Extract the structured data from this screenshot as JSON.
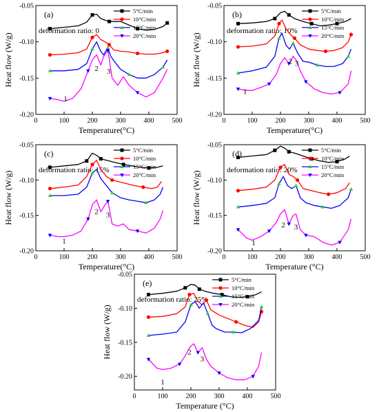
{
  "figure": {
    "series_names": [
      "5°C/min",
      "10°C/min",
      "15°C/min",
      "20°C/min"
    ],
    "series_colors": [
      "#000000",
      "#ff0000",
      "#0000ff",
      "#ff00ff"
    ],
    "marker_colors": [
      "#000000",
      "#ff0000",
      "#33cc33",
      "#0000ff"
    ],
    "marker_shapes": [
      "square",
      "circle",
      "triangle-up",
      "triangle-down"
    ]
  },
  "chart_data": [
    {
      "type": "line",
      "panel_label": "(a)",
      "annotation": "deformation ratio:  0",
      "xlabel": "Temperature(°C)",
      "ylabel": "Heat flow (W/g)",
      "xlim": [
        0,
        500
      ],
      "ylim": [
        -0.2,
        -0.05
      ],
      "x_ticks": [
        "0",
        "100",
        "200",
        "300",
        "400",
        "500"
      ],
      "y_ticks": [
        "-0.20",
        "-0.15",
        "-0.10",
        "-0.05"
      ],
      "peak_labels": [
        {
          "text": "1",
          "x": 105,
          "y": -0.182
        },
        {
          "text": "2",
          "x": 215,
          "y": -0.14
        },
        {
          "text": "3",
          "x": 258,
          "y": -0.144
        }
      ],
      "series": [
        {
          "name": "5°C/min",
          "x": [
            50,
            100,
            150,
            180,
            200,
            215,
            230,
            245,
            260,
            280,
            300,
            330,
            360,
            390,
            420,
            450,
            465
          ],
          "y": [
            -0.082,
            -0.08,
            -0.078,
            -0.073,
            -0.063,
            -0.062,
            -0.068,
            -0.07,
            -0.072,
            -0.072,
            -0.072,
            -0.077,
            -0.082,
            -0.084,
            -0.083,
            -0.079,
            -0.074
          ]
        },
        {
          "name": "10°C/min",
          "x": [
            50,
            100,
            150,
            180,
            200,
            215,
            230,
            245,
            260,
            275,
            300,
            330,
            360,
            390,
            420,
            450,
            465
          ],
          "y": [
            -0.118,
            -0.117,
            -0.115,
            -0.11,
            -0.094,
            -0.09,
            -0.097,
            -0.1,
            -0.104,
            -0.111,
            -0.113,
            -0.114,
            -0.116,
            -0.117,
            -0.117,
            -0.115,
            -0.113
          ]
        },
        {
          "name": "15°C/min",
          "x": [
            50,
            100,
            150,
            180,
            200,
            215,
            228,
            240,
            255,
            265,
            280,
            300,
            330,
            360,
            390,
            420,
            450,
            465
          ],
          "y": [
            -0.14,
            -0.14,
            -0.138,
            -0.13,
            -0.11,
            -0.1,
            -0.112,
            -0.118,
            -0.108,
            -0.12,
            -0.128,
            -0.138,
            -0.145,
            -0.15,
            -0.15,
            -0.145,
            -0.135,
            -0.125
          ]
        },
        {
          "name": "20°C/min",
          "x": [
            50,
            80,
            100,
            130,
            160,
            185,
            200,
            215,
            230,
            240,
            255,
            270,
            290,
            310,
            330,
            360,
            390,
            420,
            450,
            465
          ],
          "y": [
            -0.178,
            -0.18,
            -0.182,
            -0.178,
            -0.165,
            -0.14,
            -0.125,
            -0.118,
            -0.132,
            -0.12,
            -0.112,
            -0.15,
            -0.16,
            -0.148,
            -0.16,
            -0.17,
            -0.176,
            -0.17,
            -0.15,
            -0.138
          ]
        }
      ]
    },
    {
      "type": "line",
      "panel_label": "(b)",
      "annotation": "deformation ratio:  10%",
      "xlabel": "Temperature(°C)",
      "ylabel": "Heat flow (W/g)",
      "xlim": [
        0,
        500
      ],
      "ylim": [
        -0.2,
        -0.05
      ],
      "x_ticks": [
        "0",
        "100",
        "200",
        "300",
        "400",
        "500"
      ],
      "y_ticks": [
        "-0.20",
        "-0.15",
        "-0.10",
        "-0.05"
      ],
      "peak_labels": [
        {
          "text": "1",
          "x": 75,
          "y": -0.172
        },
        {
          "text": "2",
          "x": 235,
          "y": -0.13
        },
        {
          "text": "3",
          "x": 258,
          "y": -0.133
        }
      ],
      "series": [
        {
          "name": "5°C/min",
          "x": [
            50,
            100,
            150,
            180,
            200,
            215,
            230,
            250,
            280,
            310,
            340,
            370,
            400,
            430,
            450
          ],
          "y": [
            -0.075,
            -0.074,
            -0.072,
            -0.068,
            -0.06,
            -0.058,
            -0.063,
            -0.068,
            -0.072,
            -0.075,
            -0.078,
            -0.077,
            -0.075,
            -0.072,
            -0.068
          ]
        },
        {
          "name": "10°C/min",
          "x": [
            50,
            100,
            150,
            180,
            195,
            205,
            220,
            235,
            250,
            270,
            300,
            330,
            360,
            390,
            420,
            440,
            450
          ],
          "y": [
            -0.107,
            -0.106,
            -0.103,
            -0.092,
            -0.075,
            -0.07,
            -0.082,
            -0.09,
            -0.095,
            -0.104,
            -0.11,
            -0.112,
            -0.113,
            -0.112,
            -0.108,
            -0.1,
            -0.09
          ]
        },
        {
          "name": "15°C/min",
          "x": [
            50,
            100,
            150,
            180,
            195,
            205,
            220,
            232,
            245,
            260,
            280,
            300,
            330,
            360,
            390,
            420,
            440,
            450
          ],
          "y": [
            -0.143,
            -0.14,
            -0.135,
            -0.12,
            -0.095,
            -0.088,
            -0.105,
            -0.11,
            -0.102,
            -0.115,
            -0.127,
            -0.128,
            -0.132,
            -0.134,
            -0.134,
            -0.13,
            -0.12,
            -0.11
          ]
        },
        {
          "name": "20°C/min",
          "x": [
            50,
            80,
            100,
            130,
            160,
            185,
            200,
            215,
            230,
            245,
            255,
            270,
            290,
            320,
            350,
            380,
            410,
            440,
            450
          ],
          "y": [
            -0.165,
            -0.167,
            -0.167,
            -0.163,
            -0.158,
            -0.145,
            -0.13,
            -0.122,
            -0.13,
            -0.12,
            -0.125,
            -0.14,
            -0.155,
            -0.165,
            -0.17,
            -0.172,
            -0.17,
            -0.158,
            -0.14
          ]
        }
      ]
    },
    {
      "type": "line",
      "panel_label": "(c)",
      "annotation": "deformation ratio:  15%",
      "xlabel": "Temperature(°C)",
      "ylabel": "Heat flow (W/g)",
      "xlim": [
        0,
        500
      ],
      "ylim": [
        -0.2,
        -0.05
      ],
      "x_ticks": [
        "0",
        "100",
        "200",
        "300",
        "400",
        "500"
      ],
      "y_ticks": [
        "-0.20",
        "-0.15",
        "-0.10",
        "-0.05"
      ],
      "peak_labels": [
        {
          "text": "1",
          "x": 100,
          "y": -0.19
        },
        {
          "text": "2",
          "x": 215,
          "y": -0.148
        },
        {
          "text": "3",
          "x": 255,
          "y": -0.153
        }
      ],
      "series": [
        {
          "name": "5°C/min",
          "x": [
            50,
            100,
            150,
            180,
            200,
            215,
            230,
            250,
            280,
            310,
            340,
            370,
            400,
            430,
            450
          ],
          "y": [
            -0.082,
            -0.08,
            -0.078,
            -0.073,
            -0.062,
            -0.065,
            -0.07,
            -0.072,
            -0.075,
            -0.078,
            -0.08,
            -0.082,
            -0.083,
            -0.082,
            -0.08
          ]
        },
        {
          "name": "10°C/min",
          "x": [
            50,
            100,
            150,
            180,
            200,
            215,
            230,
            250,
            270,
            290,
            320,
            350,
            380,
            410,
            430,
            445
          ],
          "y": [
            -0.112,
            -0.11,
            -0.107,
            -0.095,
            -0.078,
            -0.072,
            -0.085,
            -0.095,
            -0.1,
            -0.102,
            -0.105,
            -0.108,
            -0.11,
            -0.112,
            -0.11,
            -0.102
          ]
        },
        {
          "name": "15°C/min",
          "x": [
            50,
            100,
            150,
            180,
            200,
            215,
            230,
            250,
            270,
            300,
            330,
            360,
            390,
            420,
            440,
            450
          ],
          "y": [
            -0.122,
            -0.122,
            -0.12,
            -0.11,
            -0.09,
            -0.085,
            -0.098,
            -0.108,
            -0.118,
            -0.125,
            -0.128,
            -0.13,
            -0.132,
            -0.128,
            -0.12,
            -0.11
          ]
        },
        {
          "name": "20°C/min",
          "x": [
            50,
            80,
            100,
            130,
            160,
            185,
            200,
            215,
            230,
            245,
            255,
            270,
            290,
            310,
            330,
            360,
            390,
            420,
            440,
            450
          ],
          "y": [
            -0.178,
            -0.18,
            -0.18,
            -0.178,
            -0.172,
            -0.155,
            -0.135,
            -0.128,
            -0.145,
            -0.135,
            -0.13,
            -0.162,
            -0.165,
            -0.162,
            -0.17,
            -0.172,
            -0.175,
            -0.168,
            -0.155,
            -0.143
          ]
        }
      ]
    },
    {
      "type": "line",
      "panel_label": "(d)",
      "annotation": "deformation ratio:  20%",
      "xlabel": "Temperature (°C)",
      "ylabel": "Heat flow (W/g)",
      "xlim": [
        0,
        500
      ],
      "ylim": [
        -0.2,
        -0.05
      ],
      "x_ticks": [
        "0",
        "100",
        "200",
        "300",
        "400",
        "500"
      ],
      "y_ticks": [
        "-0.20",
        "-0.15",
        "-0.10",
        "-0.05"
      ],
      "peak_labels": [
        {
          "text": "1",
          "x": 105,
          "y": -0.192
        },
        {
          "text": "2",
          "x": 210,
          "y": -0.167
        },
        {
          "text": "3",
          "x": 255,
          "y": -0.17
        }
      ],
      "series": [
        {
          "name": "5°C/min",
          "x": [
            50,
            100,
            150,
            180,
            200,
            215,
            230,
            250,
            280,
            310,
            340,
            370,
            400,
            430,
            445
          ],
          "y": [
            -0.068,
            -0.066,
            -0.064,
            -0.058,
            -0.052,
            -0.055,
            -0.06,
            -0.062,
            -0.066,
            -0.07,
            -0.073,
            -0.075,
            -0.074,
            -0.07,
            -0.066
          ]
        },
        {
          "name": "10°C/min",
          "x": [
            50,
            100,
            150,
            180,
            200,
            215,
            230,
            245,
            260,
            280,
            310,
            340,
            370,
            400,
            430,
            445
          ],
          "y": [
            -0.115,
            -0.113,
            -0.11,
            -0.1,
            -0.082,
            -0.078,
            -0.092,
            -0.095,
            -0.1,
            -0.112,
            -0.115,
            -0.118,
            -0.12,
            -0.118,
            -0.112,
            -0.104
          ]
        },
        {
          "name": "15°C/min",
          "x": [
            50,
            100,
            150,
            180,
            195,
            210,
            225,
            240,
            255,
            270,
            290,
            320,
            350,
            380,
            410,
            440,
            450
          ],
          "y": [
            -0.138,
            -0.136,
            -0.133,
            -0.125,
            -0.105,
            -0.095,
            -0.108,
            -0.112,
            -0.108,
            -0.125,
            -0.132,
            -0.136,
            -0.138,
            -0.14,
            -0.136,
            -0.125,
            -0.113
          ]
        },
        {
          "name": "20°C/min",
          "x": [
            50,
            80,
            100,
            130,
            160,
            185,
            200,
            215,
            230,
            245,
            255,
            270,
            290,
            320,
            350,
            380,
            410,
            440,
            450
          ],
          "y": [
            -0.17,
            -0.182,
            -0.185,
            -0.18,
            -0.172,
            -0.16,
            -0.148,
            -0.142,
            -0.162,
            -0.15,
            -0.148,
            -0.17,
            -0.178,
            -0.18,
            -0.188,
            -0.192,
            -0.188,
            -0.17,
            -0.155
          ]
        }
      ]
    },
    {
      "type": "line",
      "panel_label": "(e)",
      "annotation": "deformation ratio:  25%",
      "xlabel": "Temperature (°C)",
      "ylabel": "Heat flow (W/g)",
      "xlim": [
        0,
        500
      ],
      "ylim": [
        -0.22,
        -0.05
      ],
      "x_ticks": [
        "0",
        "100",
        "200",
        "300",
        "400",
        "500"
      ],
      "y_ticks": [
        "-0.20",
        "-0.15",
        "-0.10",
        "-0.05"
      ],
      "peak_labels": [
        {
          "text": "1",
          "x": 100,
          "y": -0.212
        },
        {
          "text": "2",
          "x": 195,
          "y": -0.168
        },
        {
          "text": "3",
          "x": 240,
          "y": -0.178
        }
      ],
      "series": [
        {
          "name": "5°C/min",
          "x": [
            50,
            100,
            150,
            180,
            200,
            215,
            230,
            250,
            280,
            310,
            340,
            370,
            400,
            430,
            450
          ],
          "y": [
            -0.08,
            -0.078,
            -0.075,
            -0.07,
            -0.065,
            -0.066,
            -0.072,
            -0.075,
            -0.078,
            -0.08,
            -0.083,
            -0.084,
            -0.083,
            -0.08,
            -0.076
          ]
        },
        {
          "name": "10°C/min",
          "x": [
            50,
            100,
            150,
            180,
            195,
            210,
            225,
            240,
            255,
            270,
            300,
            330,
            360,
            390,
            420,
            440,
            450
          ],
          "y": [
            -0.113,
            -0.112,
            -0.108,
            -0.098,
            -0.08,
            -0.078,
            -0.09,
            -0.095,
            -0.088,
            -0.102,
            -0.11,
            -0.115,
            -0.12,
            -0.125,
            -0.128,
            -0.12,
            -0.105
          ]
        },
        {
          "name": "15°C/min",
          "x": [
            50,
            100,
            150,
            180,
            200,
            215,
            230,
            245,
            260,
            275,
            290,
            320,
            350,
            380,
            410,
            440,
            450
          ],
          "y": [
            -0.14,
            -0.138,
            -0.135,
            -0.12,
            -0.095,
            -0.09,
            -0.1,
            -0.092,
            -0.108,
            -0.125,
            -0.13,
            -0.135,
            -0.135,
            -0.136,
            -0.13,
            -0.118,
            -0.098
          ]
        },
        {
          "name": "20°C/min",
          "x": [
            50,
            80,
            100,
            130,
            160,
            180,
            195,
            210,
            225,
            240,
            255,
            270,
            300,
            330,
            360,
            390,
            420,
            440,
            450
          ],
          "y": [
            -0.175,
            -0.188,
            -0.19,
            -0.188,
            -0.182,
            -0.17,
            -0.158,
            -0.152,
            -0.165,
            -0.158,
            -0.175,
            -0.185,
            -0.195,
            -0.202,
            -0.205,
            -0.205,
            -0.2,
            -0.185,
            -0.165
          ]
        }
      ]
    }
  ]
}
